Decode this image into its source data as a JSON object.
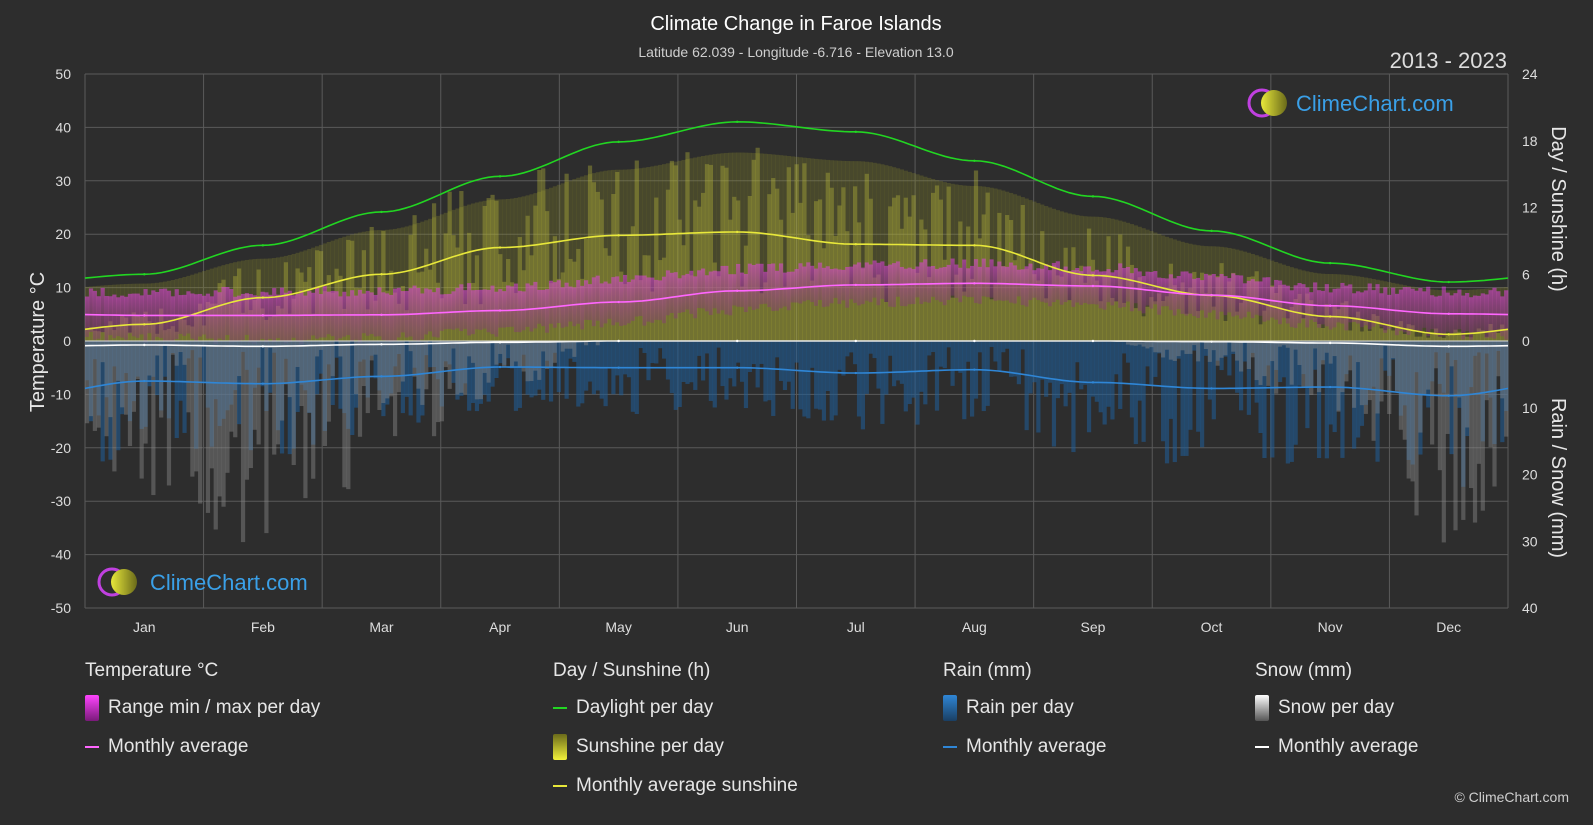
{
  "title": "Climate Change in Faroe Islands",
  "subtitle": "Latitude 62.039 - Longitude -6.716 - Elevation 13.0",
  "period": "2013 - 2023",
  "watermark": "ClimeChart.com",
  "copyright": "© ClimeChart.com",
  "colors": {
    "background": "#2d2d2d",
    "grid": "#5a5a5a",
    "daylight": "#22d622",
    "sunshine_avg": "#e8e83a",
    "sunshine_fill": "#8f8f2a",
    "temp_avg": "#ff66ff",
    "temp_range": "#cc33cc",
    "rain_avg": "#2f86d6",
    "rain_bar": "#1f5f9a",
    "snow_avg": "#ffffff",
    "snow_bar": "#8a8a8a",
    "brand_blue": "#3aa0e8"
  },
  "chart_data": {
    "type": "line",
    "title": "Climate Change in Faroe Islands",
    "categories": [
      "Jan",
      "Feb",
      "Mar",
      "Apr",
      "May",
      "Jun",
      "Jul",
      "Aug",
      "Sep",
      "Oct",
      "Nov",
      "Dec"
    ],
    "y_left": {
      "label": "Temperature °C",
      "range": [
        -50,
        50
      ],
      "ticks": [
        "50",
        "40",
        "30",
        "20",
        "10",
        "0",
        "-10",
        "-20",
        "-30",
        "-40",
        "-50"
      ]
    },
    "y_right_top": {
      "label": "Day / Sunshine (h)",
      "range": [
        0,
        24
      ],
      "ticks": [
        "24",
        "18",
        "12",
        "6",
        "0"
      ]
    },
    "y_right_bottom": {
      "label": "Rain / Snow (mm)",
      "range": [
        0,
        40
      ],
      "ticks": [
        "10",
        "20",
        "30",
        "40"
      ]
    },
    "grid": true,
    "series": [
      {
        "name": "Daylight per day",
        "axis": "hours",
        "values": [
          6.0,
          8.6,
          11.6,
          14.8,
          17.9,
          19.7,
          18.8,
          16.2,
          13.0,
          9.9,
          7.0,
          5.3
        ]
      },
      {
        "name": "Monthly average sunshine",
        "axis": "hours",
        "values": [
          1.5,
          3.9,
          6.0,
          8.4,
          9.5,
          9.8,
          8.7,
          8.6,
          5.9,
          4.1,
          2.2,
          0.6
        ]
      },
      {
        "name": "Monthly average",
        "group": "Temperature °C",
        "axis": "temperature",
        "values": [
          4.8,
          4.8,
          4.9,
          5.7,
          7.3,
          9.4,
          10.5,
          10.8,
          10.3,
          8.6,
          6.6,
          5.1
        ]
      },
      {
        "name": "Range min / max per day",
        "axis": "temperature",
        "min": [
          1.5,
          1.2,
          1.5,
          2.8,
          4.5,
          6.8,
          8.2,
          8.6,
          7.9,
          6.0,
          4.0,
          2.3
        ],
        "max": [
          8.0,
          8.2,
          8.4,
          9.0,
          10.5,
          12.5,
          13.3,
          13.5,
          12.8,
          11.0,
          9.0,
          8.2
        ]
      },
      {
        "name": "Monthly average",
        "group": "Rain (mm)",
        "axis": "mm",
        "values": [
          6.0,
          6.4,
          5.3,
          3.9,
          4.0,
          4.0,
          4.8,
          4.3,
          6.2,
          7.1,
          6.9,
          8.2
        ]
      },
      {
        "name": "Monthly average",
        "group": "Snow (mm)",
        "axis": "mm",
        "values": [
          0.6,
          0.8,
          0.5,
          0.2,
          0.0,
          0.0,
          0.0,
          0.0,
          0.0,
          0.1,
          0.3,
          0.8
        ]
      }
    ]
  },
  "legend": {
    "groups": [
      {
        "title": "Temperature °C",
        "items": [
          {
            "label": "Range min / max per day",
            "swatch": "box",
            "color": "#d633d6"
          },
          {
            "label": "Monthly average",
            "swatch": "line",
            "color": "#ff66ff"
          }
        ]
      },
      {
        "title": "Day / Sunshine (h)",
        "items": [
          {
            "label": "Daylight per day",
            "swatch": "line",
            "color": "#22d622"
          },
          {
            "label": "Sunshine per day",
            "swatch": "box",
            "color": "#c8c83a"
          },
          {
            "label": "Monthly average sunshine",
            "swatch": "line",
            "color": "#e8e83a"
          }
        ]
      },
      {
        "title": "Rain (mm)",
        "items": [
          {
            "label": "Rain per day",
            "swatch": "box",
            "color": "#2f86d6"
          },
          {
            "label": "Monthly average",
            "swatch": "line",
            "color": "#2f86d6"
          }
        ]
      },
      {
        "title": "Snow (mm)",
        "items": [
          {
            "label": "Snow per day",
            "swatch": "box",
            "color": "#d8d8d8"
          },
          {
            "label": "Monthly average",
            "swatch": "line",
            "color": "#ffffff"
          }
        ]
      }
    ]
  }
}
